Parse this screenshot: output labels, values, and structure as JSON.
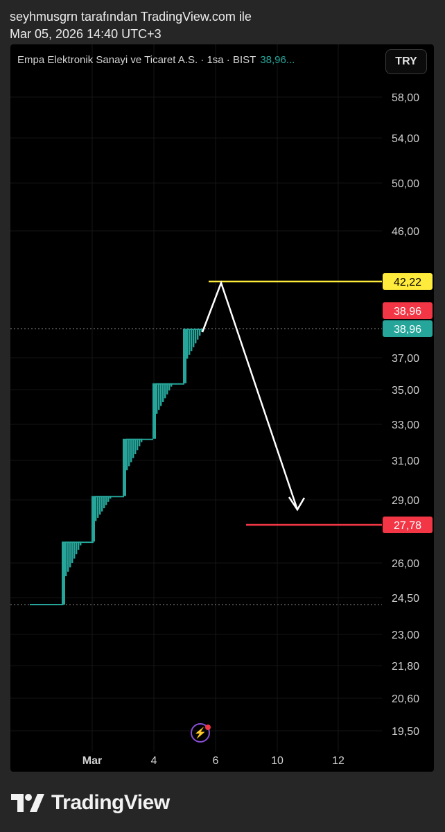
{
  "header": {
    "author_line": "seyhmusgrn tarafından TradingView.com ile",
    "date_line": "Mar 05, 2026 14:40 UTC+3"
  },
  "legend": {
    "symbol": "Empa Elektronik Sanayi ve Ticaret A.S. · 1sa · BIST",
    "last_price": "38,96..."
  },
  "currency_button": "TRY",
  "brand": "TradingView",
  "colors": {
    "up": "#26a69a",
    "down": "#f23645",
    "target": "#ffeb3b",
    "axis_text": "#d1d1d1"
  },
  "chart_data": {
    "type": "bar",
    "description_series": "hourly price steps (limit-up daily moves)",
    "y_axis_ticks": [
      "58,00",
      "54,00",
      "50,00",
      "46,00",
      "37,00",
      "35,00",
      "33,00",
      "31,00",
      "29,00",
      "26,00",
      "24,50",
      "23,00",
      "21,80",
      "20,60",
      "19,50"
    ],
    "x_axis_ticks": [
      "Mar",
      "4",
      "6",
      "10",
      "12"
    ],
    "steps": [
      {
        "session": 1,
        "low": 24.5,
        "high": 27.0
      },
      {
        "session": 2,
        "low": 27.0,
        "high": 29.2
      },
      {
        "session": 3,
        "low": 29.2,
        "high": 32.2
      },
      {
        "session": 4,
        "low": 32.2,
        "high": 35.4
      },
      {
        "session": 5,
        "low": 35.4,
        "high": 38.96
      }
    ],
    "price_labels": [
      {
        "value": "42,22",
        "role": "target-high",
        "color": "#ffeb3b"
      },
      {
        "value": "38,96",
        "role": "last-red",
        "color": "#f23645"
      },
      {
        "value": "38,96",
        "role": "last-green",
        "color": "#26a69a"
      },
      {
        "value": "27,78",
        "role": "target-low",
        "color": "#f23645"
      }
    ],
    "horizontal_levels": [
      {
        "value": 42.22,
        "color": "#ffeb3b",
        "style": "solid"
      },
      {
        "value": 27.78,
        "color": "#f23645",
        "style": "solid"
      },
      {
        "value": 38.96,
        "color": "#9a9a9a",
        "style": "dotted"
      },
      {
        "value": 24.5,
        "color": "#9a9a9a",
        "style": "dotted"
      }
    ],
    "annotation": "white arrow from 42,22 peak down toward 27,78 target"
  }
}
